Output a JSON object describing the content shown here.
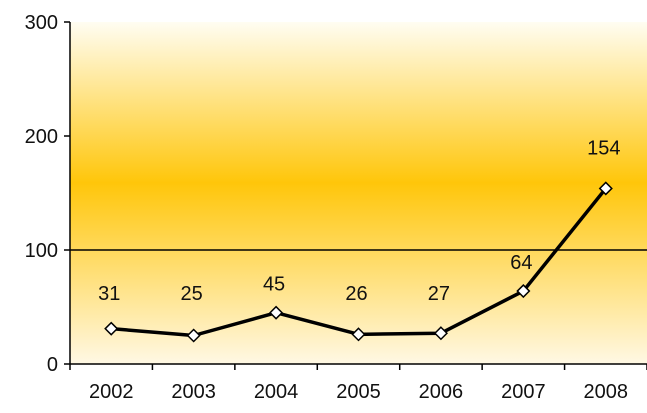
{
  "chart_data": {
    "type": "line",
    "title": "",
    "xlabel": "",
    "ylabel": "",
    "categories": [
      "2002",
      "2003",
      "2004",
      "2005",
      "2006",
      "2007",
      "2008"
    ],
    "series": [
      {
        "values": [
          31,
          25,
          45,
          26,
          27,
          64,
          154
        ],
        "data_labels": [
          "31",
          "25",
          "45",
          "26",
          "27",
          "64",
          "154"
        ]
      }
    ],
    "ylim": [
      0,
      300
    ],
    "y_ticks": [
      "0",
      "100",
      "200",
      "300"
    ],
    "reference_line": 100,
    "grid": false,
    "legend": "none",
    "colors": {
      "line": "#000000",
      "marker_fill": "#ffffff",
      "background_top": "#fffdf2",
      "background_mid": "#ffc60a",
      "background_bottom": "#fff8e4"
    }
  }
}
